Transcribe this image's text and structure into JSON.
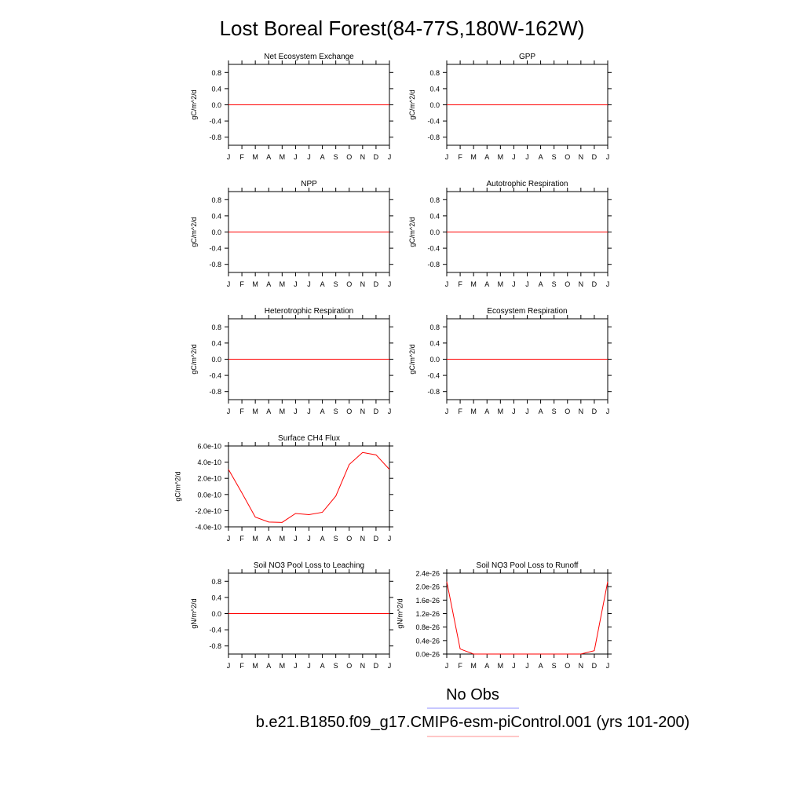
{
  "title": "Lost Boreal Forest(84-77S,180W-162W)",
  "months": [
    "J",
    "F",
    "M",
    "A",
    "M",
    "J",
    "J",
    "A",
    "S",
    "O",
    "N",
    "D",
    "J"
  ],
  "legend": {
    "entries": [
      {
        "label": "No Obs",
        "color": "#8f8fff"
      },
      {
        "label": "b.e21.B1850.f09_g17.CMIP6-esm-piControl.001 (yrs 101-200)",
        "color": "#ff8f8f"
      }
    ]
  },
  "chart_data": [
    {
      "type": "line",
      "title": "Net Ecosystem Exchange",
      "ylabel": "gC/m^2/d",
      "ylim": [
        -1.0,
        1.0
      ],
      "yticks": [
        0.8,
        0.4,
        0.0,
        -0.4,
        -0.8
      ],
      "ytick_labels": [
        "0.8",
        "0.4",
        "0.0",
        "-0.4",
        "-0.8"
      ],
      "series": [
        {
          "color": "#ff0000",
          "values": [
            0,
            0,
            0,
            0,
            0,
            0,
            0,
            0,
            0,
            0,
            0,
            0,
            0
          ]
        }
      ]
    },
    {
      "type": "line",
      "title": "GPP",
      "ylabel": "gC/m^2/d",
      "ylim": [
        -1.0,
        1.0
      ],
      "yticks": [
        0.8,
        0.4,
        0.0,
        -0.4,
        -0.8
      ],
      "ytick_labels": [
        "0.8",
        "0.4",
        "0.0",
        "-0.4",
        "-0.8"
      ],
      "series": [
        {
          "color": "#ff0000",
          "values": [
            0,
            0,
            0,
            0,
            0,
            0,
            0,
            0,
            0,
            0,
            0,
            0,
            0
          ]
        }
      ]
    },
    {
      "type": "line",
      "title": "NPP",
      "ylabel": "gC/m^2/d",
      "ylim": [
        -1.0,
        1.0
      ],
      "yticks": [
        0.8,
        0.4,
        0.0,
        -0.4,
        -0.8
      ],
      "ytick_labels": [
        "0.8",
        "0.4",
        "0.0",
        "-0.4",
        "-0.8"
      ],
      "series": [
        {
          "color": "#ff0000",
          "values": [
            0,
            0,
            0,
            0,
            0,
            0,
            0,
            0,
            0,
            0,
            0,
            0,
            0
          ]
        }
      ]
    },
    {
      "type": "line",
      "title": "Autotrophic Respiration",
      "ylabel": "gC/m^2/d",
      "ylim": [
        -1.0,
        1.0
      ],
      "yticks": [
        0.8,
        0.4,
        0.0,
        -0.4,
        -0.8
      ],
      "ytick_labels": [
        "0.8",
        "0.4",
        "0.0",
        "-0.4",
        "-0.8"
      ],
      "series": [
        {
          "color": "#ff0000",
          "values": [
            0,
            0,
            0,
            0,
            0,
            0,
            0,
            0,
            0,
            0,
            0,
            0,
            0
          ]
        }
      ]
    },
    {
      "type": "line",
      "title": "Heterotrophic Respiration",
      "ylabel": "gC/m^2/d",
      "ylim": [
        -1.0,
        1.0
      ],
      "yticks": [
        0.8,
        0.4,
        0.0,
        -0.4,
        -0.8
      ],
      "ytick_labels": [
        "0.8",
        "0.4",
        "0.0",
        "-0.4",
        "-0.8"
      ],
      "series": [
        {
          "color": "#ff0000",
          "values": [
            0,
            0,
            0,
            0,
            0,
            0,
            0,
            0,
            0,
            0,
            0,
            0,
            0
          ]
        }
      ]
    },
    {
      "type": "line",
      "title": "Ecosystem Respiration",
      "ylabel": "gC/m^2/d",
      "ylim": [
        -1.0,
        1.0
      ],
      "yticks": [
        0.8,
        0.4,
        0.0,
        -0.4,
        -0.8
      ],
      "ytick_labels": [
        "0.8",
        "0.4",
        "0.0",
        "-0.4",
        "-0.8"
      ],
      "series": [
        {
          "color": "#ff0000",
          "values": [
            0,
            0,
            0,
            0,
            0,
            0,
            0,
            0,
            0,
            0,
            0,
            0,
            0
          ]
        }
      ]
    },
    {
      "type": "line",
      "title": "Surface CH4 Flux",
      "ylabel": "gC/m^2/d",
      "ylim": [
        -4e-10,
        6e-10
      ],
      "yticks": [
        6e-10,
        4e-10,
        2e-10,
        0,
        -2e-10,
        -4e-10
      ],
      "ytick_labels": [
        "6.0e-10",
        "4.0e-10",
        "2.0e-10",
        "0.0e-10",
        "-2.0e-10",
        "-4.0e-10"
      ],
      "series": [
        {
          "color": "#ff0000",
          "values": [
            3.1e-10,
            2e-11,
            -2.8e-10,
            -3.4e-10,
            -3.45e-10,
            -2.35e-10,
            -2.5e-10,
            -2.2e-10,
            -2e-11,
            3.7e-10,
            5.2e-10,
            4.9e-10,
            3.1e-10
          ]
        }
      ]
    },
    null,
    {
      "type": "line",
      "title": "Soil NO3 Pool Loss to Leaching",
      "ylabel": "gN/m^2/d",
      "ylim": [
        -1.0,
        1.0
      ],
      "yticks": [
        0.8,
        0.4,
        0.0,
        -0.4,
        -0.8
      ],
      "ytick_labels": [
        "0.8",
        "0.4",
        "0.0",
        "-0.4",
        "-0.8"
      ],
      "series": [
        {
          "color": "#ff0000",
          "values": [
            0,
            0,
            0,
            0,
            0,
            0,
            0,
            0,
            0,
            0,
            0,
            0,
            0
          ]
        }
      ]
    },
    {
      "type": "line",
      "title": "Soil NO3 Pool Loss to Runoff",
      "ylabel": "gN/m^2/d",
      "ylim": [
        0,
        2.4e-26
      ],
      "yticks": [
        2.4e-26,
        2e-26,
        1.6e-26,
        1.2e-26,
        8e-27,
        4e-27,
        0
      ],
      "ytick_labels": [
        "2.4e-26",
        "2.0e-26",
        "1.6e-26",
        "1.2e-26",
        "0.8e-26",
        "0.4e-26",
        "0.0e-26"
      ],
      "series": [
        {
          "color": "#ff0000",
          "values": [
            2.15e-26,
            1.5e-27,
            0,
            0,
            0,
            0,
            0,
            0,
            0,
            0,
            0,
            1e-27,
            2.15e-26
          ]
        }
      ]
    }
  ]
}
